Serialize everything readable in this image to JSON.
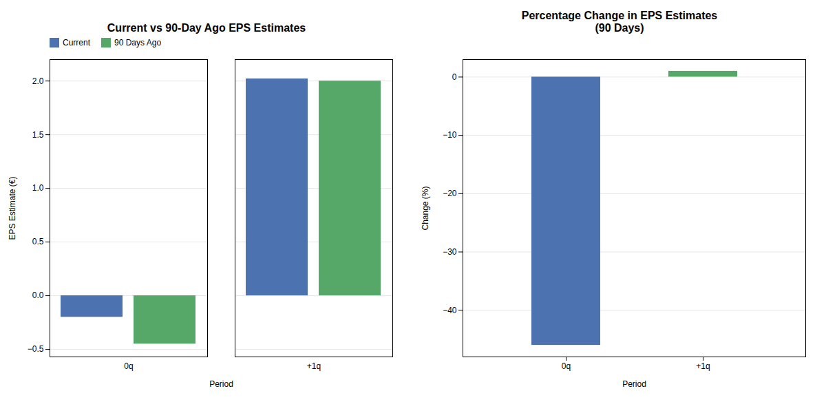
{
  "chart_data": [
    {
      "type": "bar",
      "title": "Current vs 90-Day Ago EPS Estimates",
      "xlabel": "Period",
      "ylabel": "EPS Estimate (€)",
      "categories": [
        "0q",
        "+1q"
      ],
      "series": [
        {
          "name": "Current",
          "color": "#4c72b0",
          "values": [
            -0.2,
            2.02
          ]
        },
        {
          "name": "90 Days Ago",
          "color": "#55a868",
          "values": [
            -0.45,
            2.0
          ]
        }
      ],
      "ylim": [
        -0.57,
        2.2
      ],
      "yticks": [
        -0.5,
        {
          "value": 0,
          "label": "0.0"
        },
        0.5,
        {
          "value": 1,
          "label": "1.0"
        },
        1.5,
        {
          "value": 2,
          "label": "2.0"
        }
      ],
      "grid": true,
      "legend": "upper left"
    },
    {
      "type": "bar",
      "title": "Percentage Change in EPS Estimates\n(90 Days)",
      "xlabel": "Period",
      "ylabel": "Change (%)",
      "categories": [
        "0q",
        "+1q"
      ],
      "values": [
        -46.0,
        1.0
      ],
      "colors": [
        "#4c72b0",
        "#55a868"
      ],
      "ylim": [
        -48,
        3
      ],
      "yticks": [
        -40,
        -30,
        -20,
        -10,
        0
      ],
      "grid": true
    }
  ]
}
